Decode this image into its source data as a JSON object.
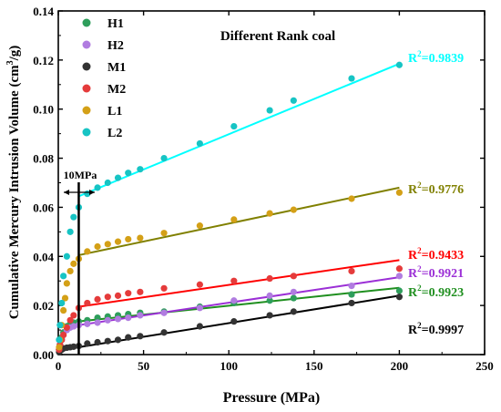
{
  "chart_data": {
    "type": "scatter",
    "title": "Different Rank coal",
    "xlabel": "Pressure (MPa)",
    "ylabel": "Cumulative Mercury Intrusion Volume (cm3/g)",
    "ylabel_main": "Cumulative Mercury Intrusion Volume (cm",
    "ylabel_sup": "3",
    "ylabel_tail": "/g)",
    "xlim": [
      0,
      250
    ],
    "ylim": [
      0,
      0.14
    ],
    "xticks": [
      0,
      50,
      100,
      150,
      200,
      250
    ],
    "yticks": [
      0.0,
      0.02,
      0.04,
      0.06,
      0.08,
      0.1,
      0.12,
      0.14
    ],
    "grid": false,
    "legend_position": "top-left",
    "annotation": {
      "label": "10MPa",
      "x": 12
    },
    "series": [
      {
        "name": "H1",
        "color": "#2e9e5b",
        "line_color": "#1f8f1f",
        "r2_label": "R",
        "r2_value": "=0.9923",
        "fit": [
          [
            12,
            0.0135
          ],
          [
            200,
            0.0272
          ]
        ],
        "points": [
          [
            0.5,
            0.002
          ],
          [
            1,
            0.004
          ],
          [
            2,
            0.007
          ],
          [
            3,
            0.009
          ],
          [
            5,
            0.0115
          ],
          [
            7,
            0.0125
          ],
          [
            9,
            0.013
          ],
          [
            12,
            0.0135
          ],
          [
            17,
            0.014
          ],
          [
            23,
            0.015
          ],
          [
            29,
            0.0155
          ],
          [
            35,
            0.016
          ],
          [
            41,
            0.0165
          ],
          [
            48,
            0.017
          ],
          [
            62,
            0.0175
          ],
          [
            83,
            0.0195
          ],
          [
            103,
            0.021
          ],
          [
            124,
            0.022
          ],
          [
            138,
            0.023
          ],
          [
            172,
            0.0245
          ],
          [
            200,
            0.026
          ]
        ]
      },
      {
        "name": "H2",
        "color": "#b07ce0",
        "line_color": "#9b2fd6",
        "r2_label": "R",
        "r2_value": "=0.9921",
        "fit": [
          [
            12,
            0.012
          ],
          [
            200,
            0.0315
          ]
        ],
        "points": [
          [
            0.5,
            0.002
          ],
          [
            1,
            0.004
          ],
          [
            2,
            0.006
          ],
          [
            3,
            0.008
          ],
          [
            5,
            0.01
          ],
          [
            7,
            0.011
          ],
          [
            9,
            0.0115
          ],
          [
            12,
            0.012
          ],
          [
            17,
            0.0125
          ],
          [
            23,
            0.013
          ],
          [
            29,
            0.014
          ],
          [
            35,
            0.0145
          ],
          [
            41,
            0.015
          ],
          [
            48,
            0.016
          ],
          [
            62,
            0.017
          ],
          [
            83,
            0.019
          ],
          [
            103,
            0.022
          ],
          [
            124,
            0.024
          ],
          [
            138,
            0.0255
          ],
          [
            172,
            0.028
          ],
          [
            200,
            0.032
          ]
        ]
      },
      {
        "name": "M1",
        "color": "#333333",
        "line_color": "#000000",
        "r2_label": "R",
        "r2_value": "=0.9997",
        "fit": [
          [
            12,
            0.003
          ],
          [
            200,
            0.024
          ]
        ],
        "points": [
          [
            0.5,
            0.001
          ],
          [
            1,
            0.0015
          ],
          [
            2,
            0.002
          ],
          [
            3,
            0.0025
          ],
          [
            5,
            0.0028
          ],
          [
            7,
            0.003
          ],
          [
            9,
            0.0032
          ],
          [
            12,
            0.0035
          ],
          [
            17,
            0.0045
          ],
          [
            23,
            0.005
          ],
          [
            29,
            0.0055
          ],
          [
            35,
            0.006
          ],
          [
            41,
            0.007
          ],
          [
            48,
            0.0075
          ],
          [
            62,
            0.009
          ],
          [
            83,
            0.0115
          ],
          [
            103,
            0.0135
          ],
          [
            124,
            0.016
          ],
          [
            138,
            0.0175
          ],
          [
            172,
            0.021
          ],
          [
            200,
            0.0235
          ]
        ]
      },
      {
        "name": "M2",
        "color": "#e53b3b",
        "line_color": "#ff0000",
        "r2_label": "R",
        "r2_value": "=0.9433",
        "fit": [
          [
            12,
            0.0195
          ],
          [
            200,
            0.0385
          ]
        ],
        "points": [
          [
            0.5,
            0.002
          ],
          [
            1,
            0.004
          ],
          [
            2,
            0.006
          ],
          [
            3,
            0.008
          ],
          [
            5,
            0.011
          ],
          [
            7,
            0.014
          ],
          [
            9,
            0.016
          ],
          [
            12,
            0.019
          ],
          [
            17,
            0.021
          ],
          [
            23,
            0.0225
          ],
          [
            29,
            0.0235
          ],
          [
            35,
            0.024
          ],
          [
            41,
            0.025
          ],
          [
            48,
            0.0255
          ],
          [
            62,
            0.027
          ],
          [
            83,
            0.0285
          ],
          [
            103,
            0.03
          ],
          [
            124,
            0.031
          ],
          [
            138,
            0.032
          ],
          [
            172,
            0.034
          ],
          [
            200,
            0.035
          ]
        ]
      },
      {
        "name": "L1",
        "color": "#d4a017",
        "line_color": "#808000",
        "r2_label": "R",
        "r2_value": "=0.9776",
        "fit": [
          [
            12,
            0.0405
          ],
          [
            200,
            0.068
          ]
        ],
        "points": [
          [
            0.5,
            0.003
          ],
          [
            1,
            0.006
          ],
          [
            2,
            0.012
          ],
          [
            3,
            0.018
          ],
          [
            4,
            0.023
          ],
          [
            5,
            0.029
          ],
          [
            7,
            0.034
          ],
          [
            9,
            0.037
          ],
          [
            12,
            0.039
          ],
          [
            17,
            0.042
          ],
          [
            23,
            0.044
          ],
          [
            29,
            0.045
          ],
          [
            35,
            0.046
          ],
          [
            41,
            0.047
          ],
          [
            48,
            0.0475
          ],
          [
            62,
            0.0495
          ],
          [
            83,
            0.0525
          ],
          [
            103,
            0.055
          ],
          [
            124,
            0.0575
          ],
          [
            138,
            0.059
          ],
          [
            172,
            0.0635
          ],
          [
            200,
            0.066
          ]
        ]
      },
      {
        "name": "L2",
        "color": "#17c4c4",
        "line_color": "#00ffff",
        "r2_label": "R",
        "r2_value": "=0.9839",
        "fit": [
          [
            12,
            0.0645
          ],
          [
            200,
            0.1185
          ]
        ],
        "points": [
          [
            0.5,
            0.006
          ],
          [
            1,
            0.012
          ],
          [
            2,
            0.021
          ],
          [
            3,
            0.032
          ],
          [
            5,
            0.04
          ],
          [
            7,
            0.05
          ],
          [
            9,
            0.056
          ],
          [
            12,
            0.06
          ],
          [
            17,
            0.0655
          ],
          [
            23,
            0.068
          ],
          [
            29,
            0.07
          ],
          [
            35,
            0.072
          ],
          [
            41,
            0.074
          ],
          [
            48,
            0.0755
          ],
          [
            62,
            0.08
          ],
          [
            83,
            0.086
          ],
          [
            103,
            0.093
          ],
          [
            124,
            0.0995
          ],
          [
            138,
            0.1035
          ],
          [
            172,
            0.1125
          ],
          [
            200,
            0.118
          ]
        ]
      }
    ]
  }
}
